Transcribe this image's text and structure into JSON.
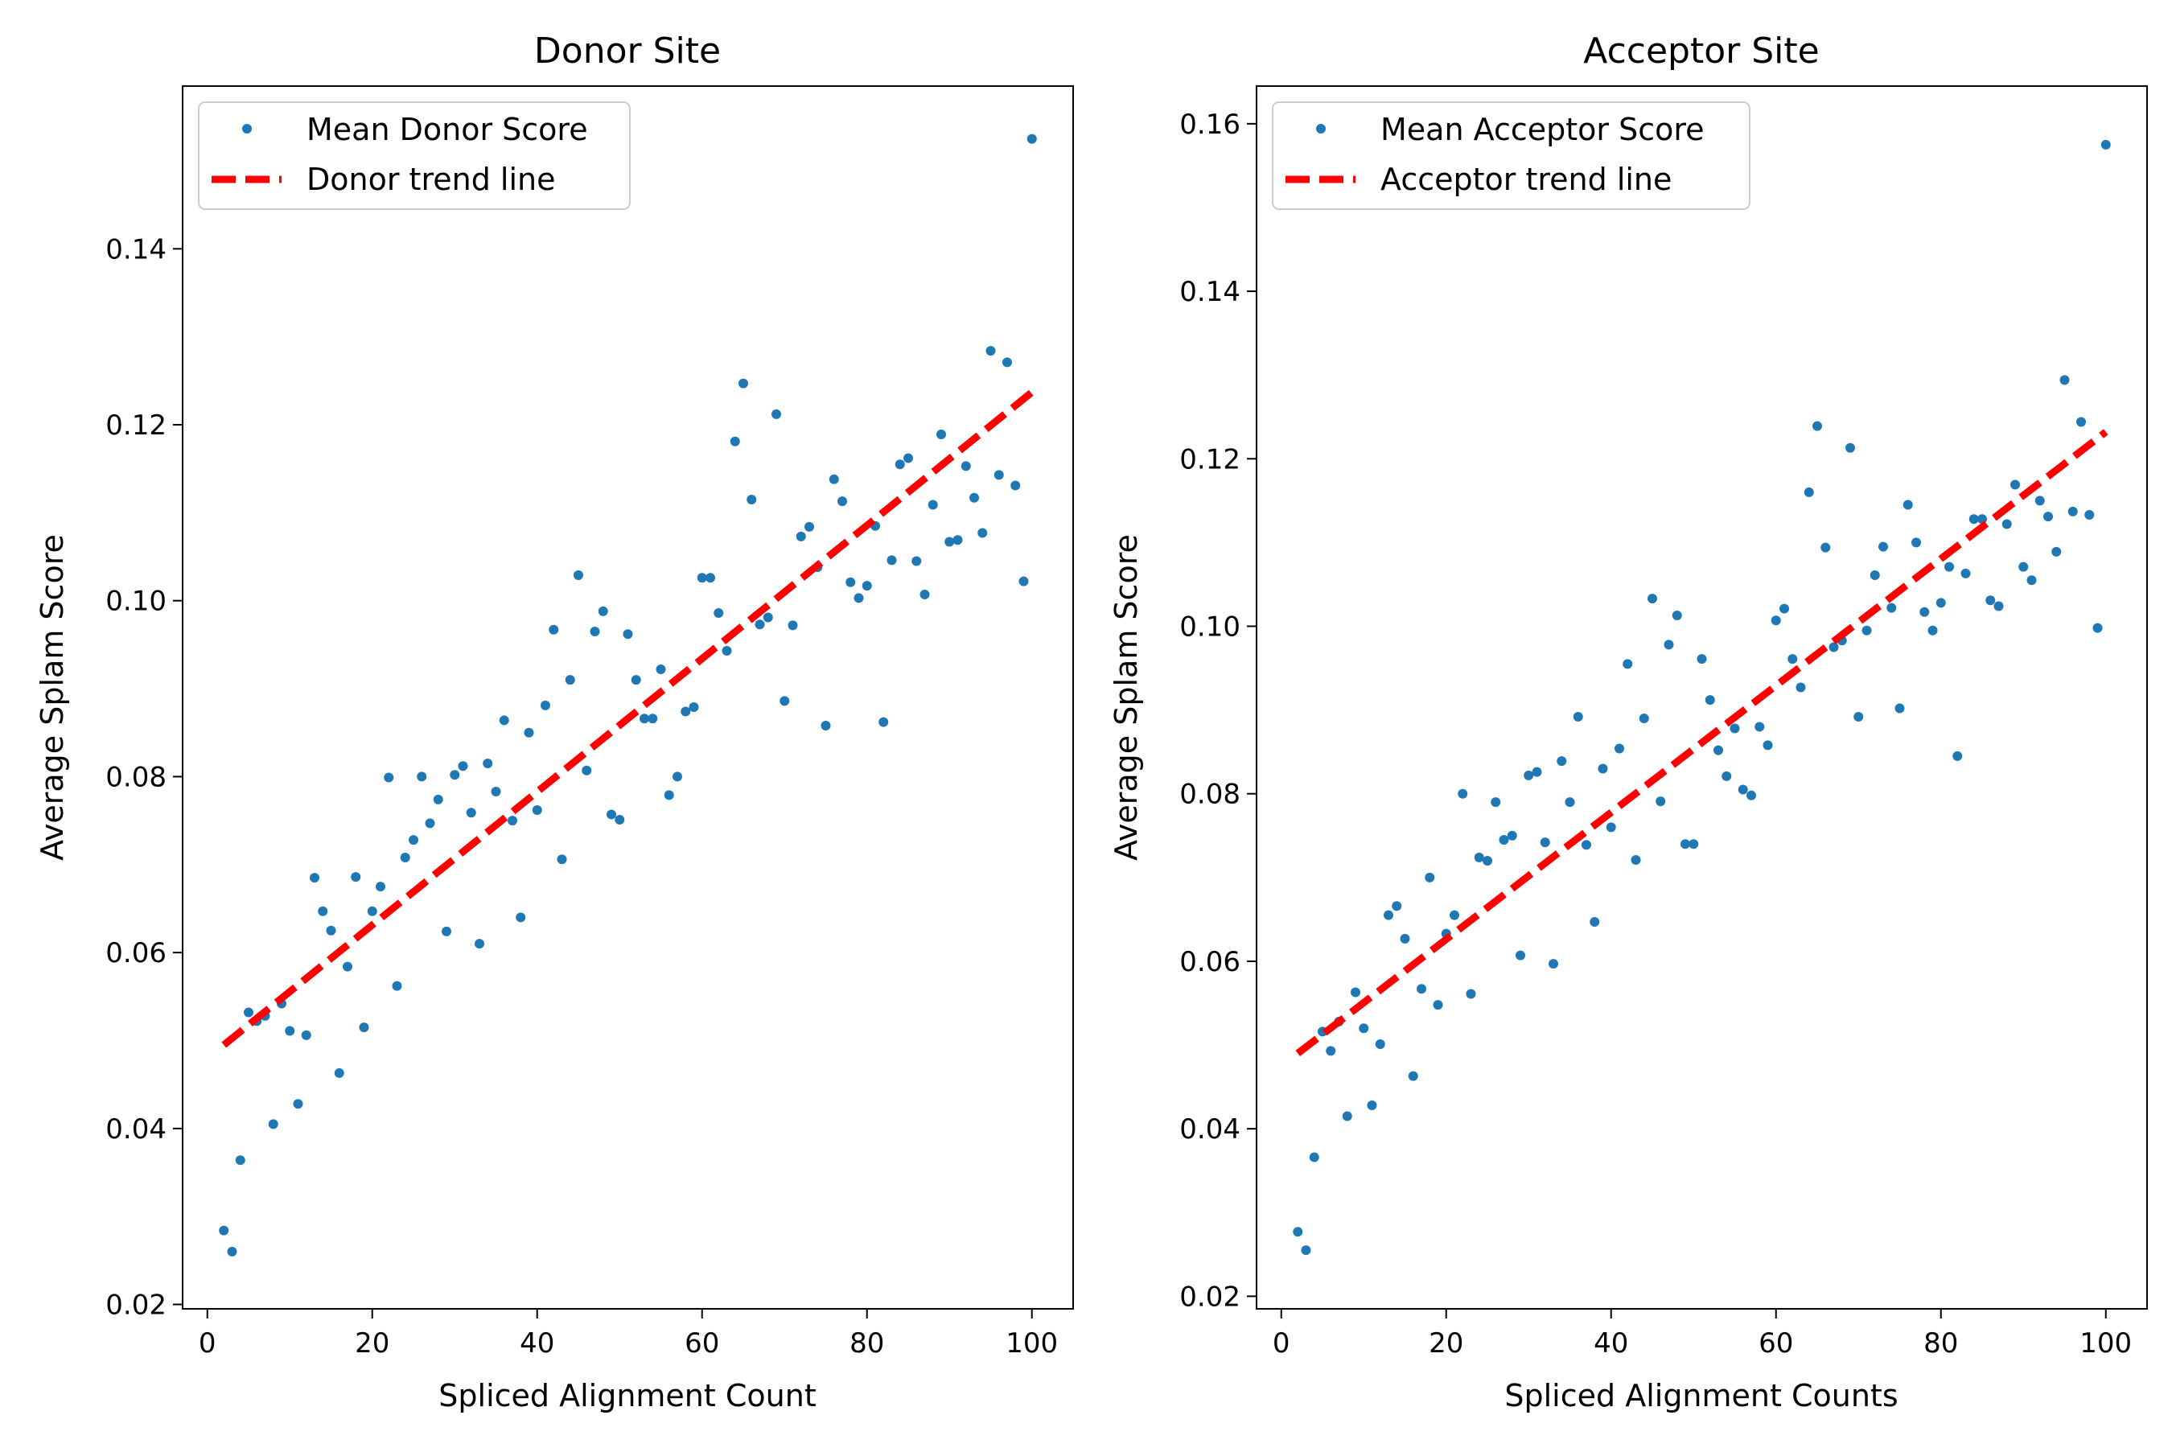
{
  "chart_data": [
    {
      "type": "scatter",
      "title": "Donor Site",
      "xlabel": "Spliced Alignment Count",
      "ylabel": "Average Splam Score",
      "xlim": [
        -3,
        105
      ],
      "ylim": [
        0.0195,
        0.1585
      ],
      "xticks": [
        0,
        20,
        40,
        60,
        80,
        100
      ],
      "yticks": [
        0.02,
        0.04,
        0.06,
        0.08,
        0.1,
        0.12,
        0.14
      ],
      "ytick_labels": [
        "0.02",
        "0.04",
        "0.06",
        "0.08",
        "0.10",
        "0.12",
        "0.14"
      ],
      "grid": false,
      "legend_position": "upper-left",
      "colors": {
        "points": "#1f77b4",
        "trend": "#ff0000"
      },
      "series": [
        {
          "name": "Mean Donor Score",
          "kind": "points",
          "x": [
            2,
            3,
            4,
            5,
            6,
            7,
            8,
            9,
            10,
            11,
            12,
            13,
            14,
            15,
            16,
            17,
            18,
            19,
            20,
            21,
            22,
            23,
            24,
            25,
            26,
            27,
            28,
            29,
            30,
            31,
            32,
            33,
            34,
            35,
            36,
            37,
            38,
            39,
            40,
            41,
            42,
            43,
            44,
            45,
            46,
            47,
            48,
            49,
            50,
            51,
            52,
            53,
            54,
            55,
            56,
            57,
            58,
            59,
            60,
            61,
            62,
            63,
            64,
            65,
            66,
            67,
            68,
            69,
            70,
            71,
            72,
            73,
            74,
            75,
            76,
            77,
            78,
            79,
            80,
            81,
            82,
            83,
            84,
            85,
            86,
            87,
            88,
            89,
            90,
            91,
            92,
            93,
            94,
            95,
            96,
            97,
            98,
            99,
            100
          ],
          "y": [
            0.0284,
            0.026,
            0.0364,
            0.0532,
            0.0522,
            0.0528,
            0.0405,
            0.0542,
            0.0511,
            0.0428,
            0.0506,
            0.0685,
            0.0647,
            0.0625,
            0.0463,
            0.0584,
            0.0686,
            0.0515,
            0.0647,
            0.0675,
            0.0799,
            0.0562,
            0.0708,
            0.0728,
            0.08,
            0.0747,
            0.0774,
            0.0624,
            0.0802,
            0.0812,
            0.0759,
            0.061,
            0.0815,
            0.0783,
            0.0864,
            0.075,
            0.064,
            0.085,
            0.0762,
            0.0881,
            0.0967,
            0.0706,
            0.091,
            0.1029,
            0.0807,
            0.0965,
            0.0988,
            0.0757,
            0.0751,
            0.0962,
            0.091,
            0.0866,
            0.0866,
            0.0922,
            0.0779,
            0.08,
            0.0874,
            0.0879,
            0.1026,
            0.1026,
            0.0986,
            0.0943,
            0.1181,
            0.1247,
            0.1115,
            0.0973,
            0.0981,
            0.1212,
            0.0886,
            0.0972,
            0.1073,
            0.1084,
            0.1038,
            0.0858,
            0.1138,
            0.1113,
            0.1021,
            0.1003,
            0.1017,
            0.1085,
            0.0862,
            0.1046,
            0.1155,
            0.1162,
            0.1045,
            0.1007,
            0.1109,
            0.1189,
            0.1067,
            0.1069,
            0.1153,
            0.1117,
            0.1077,
            0.1284,
            0.1143,
            0.1271,
            0.1131,
            0.1022,
            0.1525
          ]
        },
        {
          "name": "Donor trend line",
          "kind": "line",
          "x": [
            2,
            100
          ],
          "y": [
            0.0495,
            0.1237
          ]
        }
      ]
    },
    {
      "type": "scatter",
      "title": "Acceptor Site",
      "xlabel": "Spliced Alignment Counts",
      "ylabel": "Average Splam Score",
      "xlim": [
        -3,
        105
      ],
      "ylim": [
        0.0185,
        0.1645
      ],
      "xticks": [
        0,
        20,
        40,
        60,
        80,
        100
      ],
      "yticks": [
        0.02,
        0.04,
        0.06,
        0.08,
        0.1,
        0.12,
        0.14,
        0.16
      ],
      "ytick_labels": [
        "0.02",
        "0.04",
        "0.06",
        "0.08",
        "0.10",
        "0.12",
        "0.14",
        "0.16"
      ],
      "grid": false,
      "legend_position": "upper-left",
      "colors": {
        "points": "#1f77b4",
        "trend": "#ff0000"
      },
      "series": [
        {
          "name": "Mean Acceptor Score",
          "kind": "points",
          "x": [
            2,
            3,
            4,
            5,
            6,
            7,
            8,
            9,
            10,
            11,
            12,
            13,
            14,
            15,
            16,
            17,
            18,
            19,
            20,
            21,
            22,
            23,
            24,
            25,
            26,
            27,
            28,
            29,
            30,
            31,
            32,
            33,
            34,
            35,
            36,
            37,
            38,
            39,
            40,
            41,
            42,
            43,
            44,
            45,
            46,
            47,
            48,
            49,
            50,
            51,
            52,
            53,
            54,
            55,
            56,
            57,
            58,
            59,
            60,
            61,
            62,
            63,
            64,
            65,
            66,
            67,
            68,
            69,
            70,
            71,
            72,
            73,
            74,
            75,
            76,
            77,
            78,
            79,
            80,
            81,
            82,
            83,
            84,
            85,
            86,
            87,
            88,
            89,
            90,
            91,
            92,
            93,
            94,
            95,
            96,
            97,
            98,
            99,
            100
          ],
          "y": [
            0.0277,
            0.0255,
            0.0366,
            0.0516,
            0.0493,
            0.0528,
            0.0415,
            0.0563,
            0.052,
            0.0428,
            0.0501,
            0.0655,
            0.0666,
            0.0627,
            0.0463,
            0.0567,
            0.07,
            0.0548,
            0.0633,
            0.0655,
            0.08,
            0.0561,
            0.0724,
            0.072,
            0.079,
            0.0745,
            0.075,
            0.0607,
            0.0822,
            0.0826,
            0.0742,
            0.0597,
            0.0839,
            0.079,
            0.0892,
            0.0739,
            0.0647,
            0.083,
            0.076,
            0.0854,
            0.0955,
            0.0721,
            0.089,
            0.1033,
            0.0791,
            0.0978,
            0.1013,
            0.074,
            0.074,
            0.0961,
            0.0912,
            0.0852,
            0.0821,
            0.0878,
            0.0805,
            0.0798,
            0.088,
            0.0858,
            0.1007,
            0.1021,
            0.0961,
            0.0927,
            0.116,
            0.1239,
            0.1094,
            0.0975,
            0.0983,
            0.1213,
            0.0892,
            0.0995,
            0.1061,
            0.1095,
            0.1022,
            0.0902,
            0.1145,
            0.11,
            0.1017,
            0.0995,
            0.1028,
            0.1071,
            0.0845,
            0.1063,
            0.1128,
            0.1128,
            0.1031,
            0.1024,
            0.1122,
            0.1169,
            0.1071,
            0.1055,
            0.115,
            0.1131,
            0.1089,
            0.1294,
            0.1137,
            0.1244,
            0.1133,
            0.0998,
            0.1575
          ]
        },
        {
          "name": "Acceptor trend line",
          "kind": "line",
          "x": [
            2,
            100
          ],
          "y": [
            0.049,
            0.1232
          ]
        }
      ]
    }
  ]
}
